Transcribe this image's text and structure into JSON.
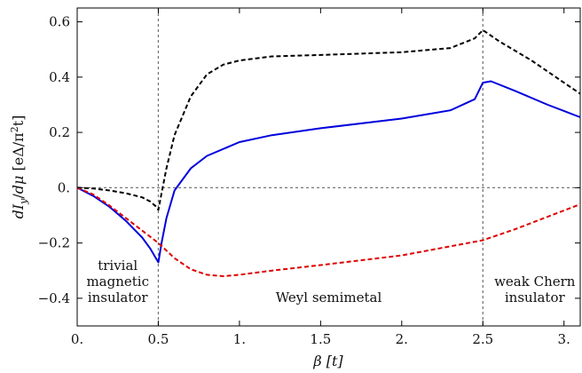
{
  "chart_data": {
    "type": "line",
    "xlabel": "β [t]",
    "ylabel": "dI_y/dμ [eΔ/π²t]",
    "xlim": [
      0,
      3.1
    ],
    "ylim": [
      -0.5,
      0.65
    ],
    "x_ticks": [
      {
        "value": 0,
        "label": "0."
      },
      {
        "value": 0.5,
        "label": "0.5"
      },
      {
        "value": 1.0,
        "label": "1."
      },
      {
        "value": 1.5,
        "label": "1.5"
      },
      {
        "value": 2.0,
        "label": "2."
      },
      {
        "value": 2.5,
        "label": "2.5"
      },
      {
        "value": 3.0,
        "label": "3."
      }
    ],
    "y_ticks": [
      {
        "value": -0.4,
        "label": "−0.4"
      },
      {
        "value": -0.2,
        "label": "−0.2"
      },
      {
        "value": 0.0,
        "label": "0."
      },
      {
        "value": 0.2,
        "label": "0.2"
      },
      {
        "value": 0.4,
        "label": "0.4"
      },
      {
        "value": 0.6,
        "label": "0.6"
      }
    ],
    "vlines": [
      0.5,
      2.5
    ],
    "hlines": [
      0.0
    ],
    "series": [
      {
        "color": "#000000",
        "style": "dashed",
        "x": [
          0,
          0.1,
          0.2,
          0.3,
          0.4,
          0.45,
          0.49,
          0.5,
          0.52,
          0.55,
          0.6,
          0.7,
          0.8,
          0.9,
          1.0,
          1.2,
          1.5,
          2.0,
          2.3,
          2.45,
          2.5,
          2.6,
          2.8,
          3.0,
          3.1
        ],
        "y": [
          0,
          -0.003,
          -0.01,
          -0.02,
          -0.035,
          -0.05,
          -0.07,
          -0.08,
          -0.02,
          0.07,
          0.19,
          0.33,
          0.41,
          0.445,
          0.46,
          0.475,
          0.48,
          0.49,
          0.505,
          0.54,
          0.57,
          0.53,
          0.46,
          0.38,
          0.34
        ]
      },
      {
        "color": "#0000dd",
        "style": "solid",
        "x": [
          0,
          0.1,
          0.2,
          0.3,
          0.4,
          0.45,
          0.49,
          0.5,
          0.52,
          0.55,
          0.6,
          0.7,
          0.8,
          1.0,
          1.2,
          1.5,
          2.0,
          2.3,
          2.45,
          2.5,
          2.55,
          2.7,
          2.9,
          3.1
        ],
        "y": [
          0,
          -0.03,
          -0.07,
          -0.12,
          -0.18,
          -0.22,
          -0.26,
          -0.27,
          -0.2,
          -0.11,
          -0.01,
          0.07,
          0.115,
          0.165,
          0.19,
          0.215,
          0.25,
          0.28,
          0.32,
          0.38,
          0.385,
          0.35,
          0.3,
          0.255
        ]
      },
      {
        "color": "#dd0000",
        "style": "dashed",
        "x": [
          0,
          0.1,
          0.2,
          0.3,
          0.4,
          0.5,
          0.6,
          0.7,
          0.8,
          0.9,
          1.0,
          1.2,
          1.5,
          2.0,
          2.5,
          2.7,
          2.9,
          3.1
        ],
        "y": [
          0,
          -0.025,
          -0.065,
          -0.11,
          -0.155,
          -0.2,
          -0.255,
          -0.295,
          -0.315,
          -0.32,
          -0.315,
          -0.3,
          -0.28,
          -0.245,
          -0.19,
          -0.15,
          -0.105,
          -0.06
        ]
      }
    ],
    "annotations": [
      {
        "lines": [
          "trivial",
          "magnetic",
          "insulator"
        ],
        "x": 0.25
      },
      {
        "lines": [
          "Weyl semimetal"
        ],
        "x": 1.55
      },
      {
        "lines": [
          "weak Chern",
          "insulator"
        ],
        "x": 2.82
      }
    ]
  }
}
